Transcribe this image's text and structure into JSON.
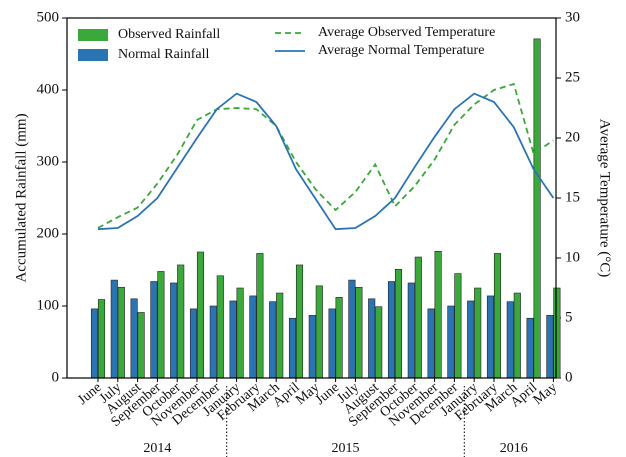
{
  "chart_data": {
    "type": "bar_line",
    "categories": [
      "June",
      "July",
      "August",
      "September",
      "October",
      "November",
      "December",
      "January",
      "February",
      "March",
      "April",
      "May",
      "June",
      "July",
      "August",
      "September",
      "October",
      "November",
      "December",
      "January",
      "February",
      "March",
      "April",
      "May"
    ],
    "year_labels": [
      "2014",
      "2015",
      "2016"
    ],
    "ylabel": "Accumulated Rainfall (mm)",
    "y2label": "Average Temperature (°C)",
    "ylim": [
      0,
      500
    ],
    "yticks": [
      0,
      100,
      200,
      300,
      400,
      500
    ],
    "y2lim": [
      0,
      30
    ],
    "y2ticks": [
      0,
      5,
      10,
      15,
      20,
      25,
      30
    ],
    "series": [
      {
        "name": "Observed Rainfall",
        "kind": "bar",
        "color": "#3aa83a",
        "values": [
          109,
          126,
          91,
          148,
          157,
          175,
          142,
          125,
          173,
          118,
          157,
          128,
          112,
          126,
          99,
          151,
          168,
          176,
          145,
          125,
          173,
          118,
          471,
          125
        ]
      },
      {
        "name": "Normal Rainfall",
        "kind": "bar",
        "color": "#2b74b4",
        "values": [
          96,
          136,
          110,
          134,
          132,
          96,
          100,
          107,
          114,
          106,
          83,
          87,
          96,
          136,
          110,
          134,
          132,
          96,
          100,
          107,
          114,
          106,
          83,
          87
        ]
      },
      {
        "name": "Average Observed Temperature",
        "kind": "line",
        "axis": "y2",
        "linestyle": "dashed",
        "color": "#3aa83a",
        "values": [
          12.5,
          13.4,
          14.2,
          16.2,
          18.6,
          21.5,
          22.4,
          22.5,
          22.4,
          21.0,
          18.0,
          15.7,
          14.0,
          15.5,
          17.8,
          14.3,
          16.0,
          18.2,
          21.1,
          22.8,
          24.0,
          24.5,
          18.7,
          19.8
        ]
      },
      {
        "name": "Average Normal Temperature",
        "kind": "line",
        "axis": "y2",
        "linestyle": "solid",
        "color": "#2b74b4",
        "values": [
          12.4,
          12.5,
          13.5,
          15.0,
          17.5,
          20.0,
          22.4,
          23.7,
          23.0,
          21.0,
          17.4,
          14.9,
          12.4,
          12.5,
          13.5,
          15.0,
          17.6,
          20.1,
          22.4,
          23.7,
          23.0,
          20.9,
          17.4,
          15.0
        ]
      }
    ]
  }
}
